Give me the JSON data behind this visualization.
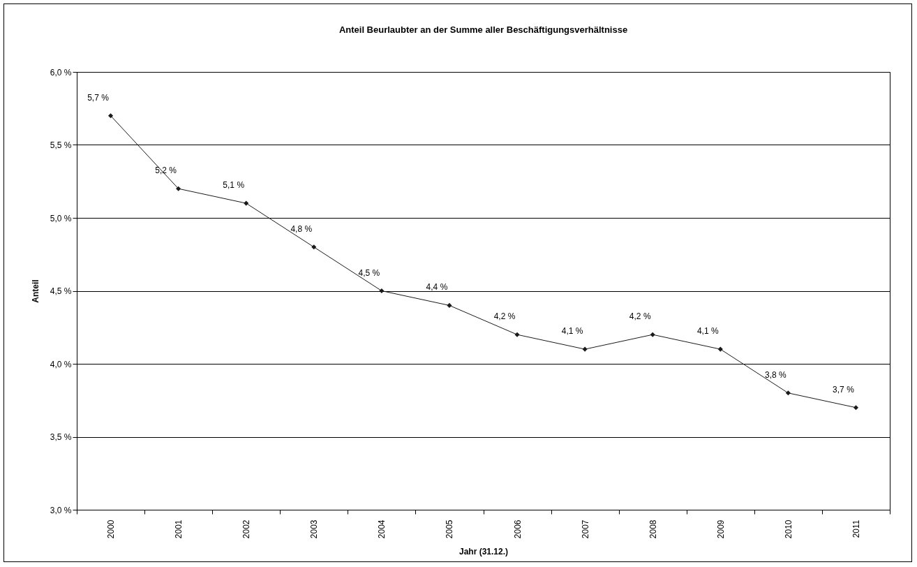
{
  "chart_data": {
    "type": "line",
    "title": "Anteil Beurlaubter an der Summe aller Beschäftigungsverhältnisse",
    "xlabel": "Jahr (31.12.)",
    "ylabel": "Anteil",
    "categories": [
      "2000",
      "2001",
      "2002",
      "2003",
      "2004",
      "2005",
      "2006",
      "2007",
      "2008",
      "2009",
      "2010",
      "2011"
    ],
    "series": [
      {
        "color": "#1a1a1a",
        "values": [
          5.7,
          5.2,
          5.1,
          4.8,
          4.5,
          4.4,
          4.2,
          4.1,
          4.2,
          4.1,
          3.8,
          3.7
        ],
        "value_labels": [
          "5,7 %",
          "5,2 %",
          "5,1 %",
          "4,8 %",
          "4,5 %",
          "4,4 %",
          "4,2 %",
          "4,1 %",
          "4,2 %",
          "4,1 %",
          "3,8 %",
          "3,7 %"
        ]
      }
    ],
    "ylim": [
      3.0,
      6.0
    ],
    "yticks": [
      {
        "value": 3.0,
        "label": "3,0 %"
      },
      {
        "value": 3.5,
        "label": "3,5 %"
      },
      {
        "value": 4.0,
        "label": "4,0 %"
      },
      {
        "value": 4.5,
        "label": "4,5 %"
      },
      {
        "value": 5.0,
        "label": "5,0 %"
      },
      {
        "value": 5.5,
        "label": "5,5 %"
      },
      {
        "value": 6.0,
        "label": "6,0 %"
      }
    ],
    "grid": "y",
    "marker": "diamond",
    "line_style": "solid"
  }
}
